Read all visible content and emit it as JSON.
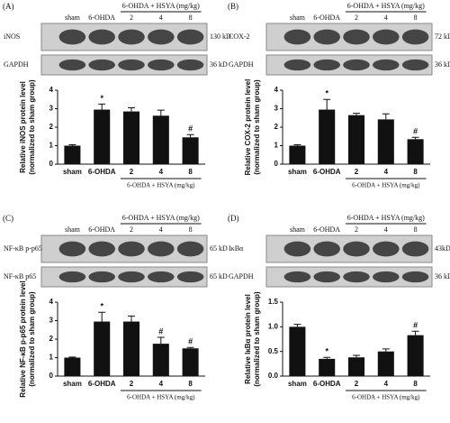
{
  "chart_data": [
    {
      "type": "bar",
      "panel": "(A)",
      "blot": {
        "group_label": "6-OHDA + HSYA (mg/kg)",
        "lanes": [
          "sham",
          "6-OHDA",
          "2",
          "4",
          "8"
        ],
        "rows": [
          {
            "label": "iNOS",
            "size": "130 kD"
          },
          {
            "label": "GAPDH",
            "size": "36 kD"
          }
        ]
      },
      "ylabel": [
        "Relative iNOS protein level",
        "(normalized to sham group)"
      ],
      "categories": [
        "sham",
        "6-OHDA",
        "2",
        "4",
        "8"
      ],
      "group_label": "6-OHDA + HSYA (mg/kg)",
      "values": [
        1.0,
        2.95,
        2.85,
        2.62,
        1.45
      ],
      "errors": [
        0.05,
        0.3,
        0.2,
        0.3,
        0.15
      ],
      "markers": [
        null,
        "*",
        null,
        null,
        "#"
      ],
      "color": "#111111",
      "ylim": [
        0,
        4
      ],
      "yticks": [
        0,
        1,
        2,
        3,
        4
      ]
    },
    {
      "type": "bar",
      "panel": "(B)",
      "blot": {
        "group_label": "6-OHDA + HSYA (mg/kg)",
        "lanes": [
          "sham",
          "6-OHDA",
          "2",
          "4",
          "8"
        ],
        "rows": [
          {
            "label": "COX-2",
            "size": "72 kD"
          },
          {
            "label": "GAPDH",
            "size": "36 kD"
          }
        ]
      },
      "ylabel": [
        "Relative COX-2 protein level",
        "(normalized to sham group)"
      ],
      "categories": [
        "sham",
        "6-OHDA",
        "2",
        "4",
        "8"
      ],
      "group_label": "6-OHDA + HSYA (mg/kg)",
      "values": [
        1.0,
        2.95,
        2.65,
        2.42,
        1.35
      ],
      "errors": [
        0.05,
        0.55,
        0.1,
        0.3,
        0.1
      ],
      "markers": [
        null,
        "*",
        null,
        null,
        "#"
      ],
      "color": "#111111",
      "ylim": [
        0,
        4
      ],
      "yticks": [
        0,
        1,
        2,
        3,
        4
      ]
    },
    {
      "type": "bar",
      "panel": "(C)",
      "blot": {
        "group_label": "6-OHDA + HSYA (mg/kg)",
        "lanes": [
          "sham",
          "6-OHDA",
          "2",
          "4",
          "8"
        ],
        "rows": [
          {
            "label": "NF-κB p-p65",
            "size": "65 kD"
          },
          {
            "label": "NF-κB p65",
            "size": "65 kD"
          }
        ]
      },
      "ylabel": [
        "Relative NF-κB p-p65 protein level",
        "(normalized to sham group)"
      ],
      "categories": [
        "sham",
        "6-OHDA",
        "2",
        "4",
        "8"
      ],
      "group_label": "6-OHDA + HSYA (mg/kg)",
      "values": [
        1.0,
        2.95,
        2.95,
        1.75,
        1.5
      ],
      "errors": [
        0.03,
        0.5,
        0.3,
        0.35,
        0.05
      ],
      "markers": [
        null,
        "*",
        null,
        "#",
        "#"
      ],
      "color": "#111111",
      "ylim": [
        0,
        4
      ],
      "yticks": [
        0,
        1,
        2,
        3,
        4
      ]
    },
    {
      "type": "bar",
      "panel": "(D)",
      "blot": {
        "group_label": "6-OHDA + HSYA (mg/kg)",
        "lanes": [
          "sham",
          "6-OHDA",
          "2",
          "4",
          "8"
        ],
        "rows": [
          {
            "label": "IκBα",
            "size": "43kD"
          },
          {
            "label": "GAPDH",
            "size": "36 kD"
          }
        ]
      },
      "ylabel": [
        "Relative IκBα protein level",
        "(normalized to sham group)"
      ],
      "categories": [
        "sham",
        "6-OHDA",
        "2",
        "4",
        "8"
      ],
      "group_label": "6-OHDA + HSYA (mg/kg)",
      "values": [
        1.0,
        0.35,
        0.38,
        0.5,
        0.83
      ],
      "errors": [
        0.05,
        0.03,
        0.04,
        0.05,
        0.08
      ],
      "markers": [
        null,
        "*",
        null,
        null,
        "#"
      ],
      "color": "#111111",
      "ylim": [
        0,
        1.5
      ],
      "yticks": [
        {
          "value": 0,
          "label": "0.0"
        },
        {
          "value": 0.5,
          "label": "0.5"
        },
        {
          "value": 1,
          "label": "1.0"
        },
        {
          "value": 1.5,
          "label": "1.5"
        }
      ]
    }
  ]
}
